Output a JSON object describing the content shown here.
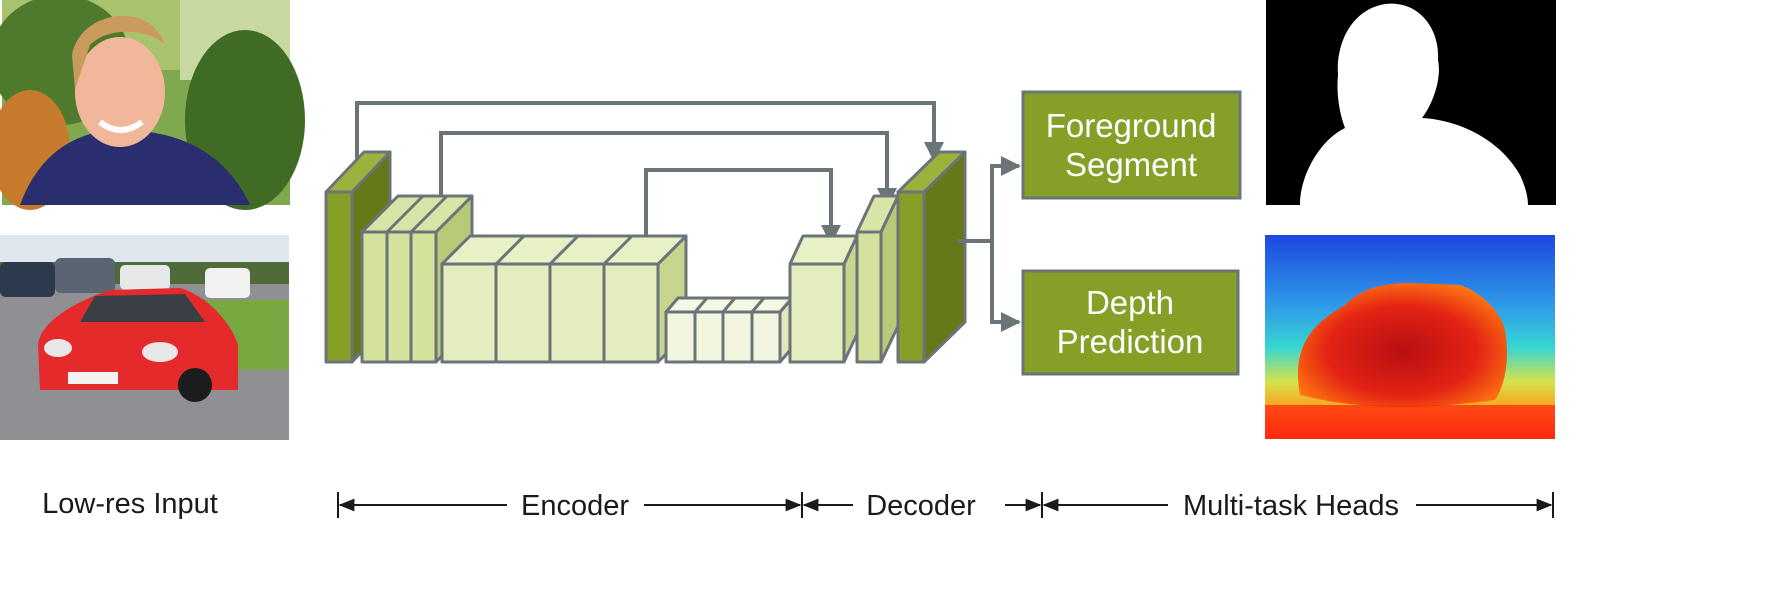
{
  "labels": {
    "input": "Low-res Input",
    "encoder": "Encoder",
    "decoder": "Decoder",
    "heads": "Multi-task Heads"
  },
  "heads": [
    {
      "line1": "Foreground",
      "line2": "Segment"
    },
    {
      "line1": "Depth",
      "line2": "Prediction"
    }
  ],
  "colors": {
    "dark_olive": "#7f951f",
    "mid_green": "#c9d88f",
    "light_green": "#e6efc1",
    "pale_green": "#f2f6e0",
    "head_fill": "#86a027",
    "connector": "#6b7479"
  }
}
